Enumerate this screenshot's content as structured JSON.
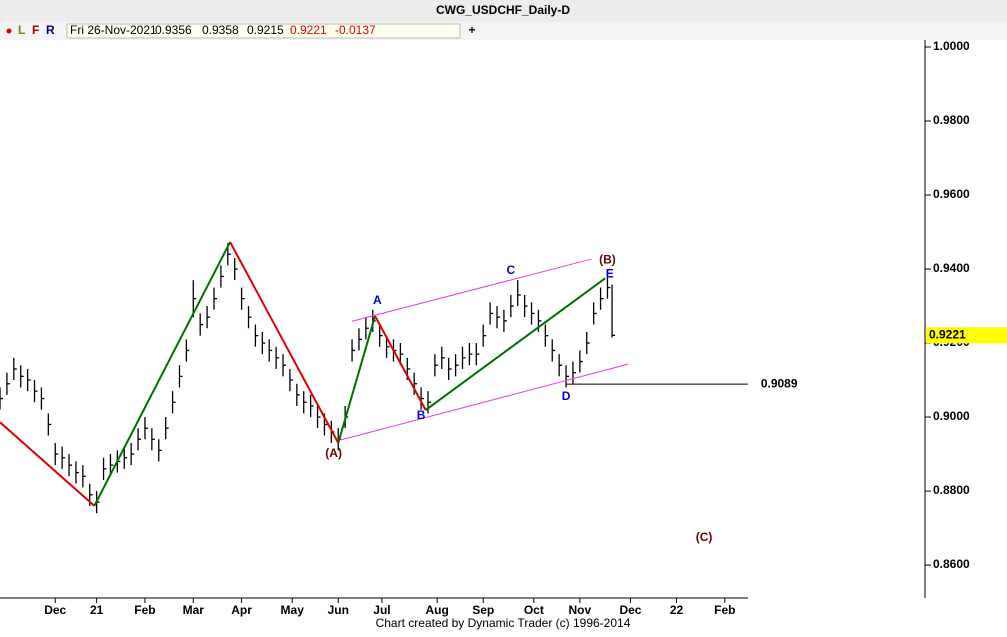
{
  "chart_data": {
    "type": "ohlc",
    "title": "CWG_USDCHF_Daily-D",
    "toolbar": [
      "L",
      "F",
      "R"
    ],
    "info": {
      "date": "Fri 26-Nov-2021",
      "open": 0.9356,
      "high": 0.9358,
      "low": 0.9215,
      "close": 0.9221,
      "change": -0.0137
    },
    "footer": "Chart created by Dynamic Trader  (c) 1996-2014",
    "xlim": [
      0,
      402
    ],
    "xticks": [
      {
        "value": 24,
        "label": "Dec"
      },
      {
        "value": 42,
        "label": "21"
      },
      {
        "value": 63,
        "label": "Feb"
      },
      {
        "value": 84,
        "label": "Mar"
      },
      {
        "value": 105,
        "label": "Apr"
      },
      {
        "value": 127,
        "label": "May"
      },
      {
        "value": 147,
        "label": "Jun"
      },
      {
        "value": 166,
        "label": "Jul"
      },
      {
        "value": 190,
        "label": "Aug"
      },
      {
        "value": 210,
        "label": "Sep"
      },
      {
        "value": 232,
        "label": "Oct"
      },
      {
        "value": 252,
        "label": "Nov"
      },
      {
        "value": 274,
        "label": "Dec"
      },
      {
        "value": 294,
        "label": "22"
      },
      {
        "value": 315,
        "label": "Feb"
      }
    ],
    "ylim": [
      0.8511,
      1.0019
    ],
    "yticks": [
      {
        "value": 1.0,
        "label": "1.0000"
      },
      {
        "value": 0.98,
        "label": "0.9800"
      },
      {
        "value": 0.96,
        "label": "0.9600"
      },
      {
        "value": 0.94,
        "label": "0.9400"
      },
      {
        "value": 0.92,
        "label": "0.9200"
      },
      {
        "value": 0.9,
        "label": "0.9000"
      },
      {
        "value": 0.88,
        "label": "0.8800"
      },
      {
        "value": 0.86,
        "label": "0.8600"
      }
    ],
    "bar_color": "#000000",
    "x": [
      0,
      3,
      6,
      9,
      12,
      15,
      18,
      21,
      24,
      27,
      30,
      33,
      36,
      39,
      42,
      45,
      48,
      51,
      54,
      57,
      60,
      63,
      66,
      69,
      72,
      75,
      78,
      81,
      84,
      87,
      90,
      93,
      96,
      99,
      102,
      105,
      108,
      111,
      114,
      117,
      120,
      123,
      126,
      129,
      132,
      135,
      138,
      141,
      144,
      147,
      150,
      153,
      156,
      159,
      162,
      165,
      168,
      171,
      174,
      177,
      180,
      183,
      186,
      189,
      192,
      195,
      198,
      201,
      204,
      207,
      210,
      213,
      216,
      219,
      222,
      225,
      228,
      231,
      234,
      237,
      240,
      243,
      246,
      249,
      252,
      255,
      258,
      261,
      264,
      266
    ],
    "high": [
      0.908,
      0.912,
      0.916,
      0.914,
      0.913,
      0.91,
      0.908,
      0.901,
      0.893,
      0.892,
      0.89,
      0.888,
      0.887,
      0.882,
      0.88,
      0.889,
      0.89,
      0.891,
      0.892,
      0.893,
      0.897,
      0.9,
      0.897,
      0.894,
      0.9,
      0.907,
      0.914,
      0.921,
      0.937,
      0.928,
      0.93,
      0.935,
      0.941,
      0.947,
      0.943,
      0.935,
      0.93,
      0.925,
      0.923,
      0.921,
      0.919,
      0.917,
      0.913,
      0.909,
      0.907,
      0.906,
      0.903,
      0.901,
      0.899,
      0.897,
      0.903,
      0.921,
      0.924,
      0.927,
      0.929,
      0.925,
      0.922,
      0.921,
      0.92,
      0.916,
      0.912,
      0.908,
      0.907,
      0.917,
      0.919,
      0.916,
      0.917,
      0.919,
      0.92,
      0.92,
      0.925,
      0.931,
      0.93,
      0.929,
      0.933,
      0.937,
      0.933,
      0.931,
      0.929,
      0.925,
      0.921,
      0.917,
      0.914,
      0.915,
      0.918,
      0.923,
      0.931,
      0.935,
      0.938,
      0.9358
    ],
    "low": [
      0.902,
      0.906,
      0.91,
      0.908,
      0.907,
      0.904,
      0.902,
      0.895,
      0.887,
      0.886,
      0.884,
      0.882,
      0.881,
      0.876,
      0.874,
      0.883,
      0.884,
      0.885,
      0.886,
      0.887,
      0.891,
      0.894,
      0.891,
      0.888,
      0.894,
      0.901,
      0.908,
      0.915,
      0.927,
      0.922,
      0.924,
      0.929,
      0.935,
      0.941,
      0.937,
      0.929,
      0.924,
      0.919,
      0.917,
      0.915,
      0.913,
      0.911,
      0.907,
      0.903,
      0.901,
      0.9,
      0.897,
      0.895,
      0.893,
      0.891,
      0.897,
      0.915,
      0.918,
      0.921,
      0.923,
      0.919,
      0.916,
      0.915,
      0.914,
      0.91,
      0.906,
      0.902,
      0.901,
      0.911,
      0.913,
      0.91,
      0.911,
      0.913,
      0.914,
      0.914,
      0.919,
      0.925,
      0.924,
      0.923,
      0.927,
      0.93,
      0.927,
      0.925,
      0.923,
      0.919,
      0.915,
      0.911,
      0.908,
      0.909,
      0.912,
      0.917,
      0.925,
      0.929,
      0.932,
      0.9215
    ],
    "close": [
      0.905,
      0.909,
      0.913,
      0.911,
      0.91,
      0.907,
      0.905,
      0.898,
      0.89,
      0.889,
      0.887,
      0.885,
      0.884,
      0.879,
      0.877,
      0.886,
      0.887,
      0.888,
      0.889,
      0.89,
      0.894,
      0.897,
      0.894,
      0.891,
      0.897,
      0.904,
      0.911,
      0.918,
      0.932,
      0.925,
      0.927,
      0.932,
      0.938,
      0.944,
      0.94,
      0.932,
      0.927,
      0.922,
      0.92,
      0.918,
      0.916,
      0.914,
      0.91,
      0.906,
      0.904,
      0.903,
      0.9,
      0.898,
      0.896,
      0.894,
      0.9,
      0.918,
      0.921,
      0.924,
      0.926,
      0.922,
      0.919,
      0.918,
      0.917,
      0.913,
      0.909,
      0.905,
      0.904,
      0.914,
      0.916,
      0.913,
      0.914,
      0.916,
      0.917,
      0.917,
      0.922,
      0.928,
      0.927,
      0.926,
      0.93,
      0.933,
      0.93,
      0.928,
      0.926,
      0.922,
      0.918,
      0.914,
      0.911,
      0.912,
      0.915,
      0.92,
      0.928,
      0.932,
      0.935,
      0.9221
    ],
    "wave_segments": [
      {
        "color": "#e00000",
        "x": [
          0,
          41
        ],
        "y": [
          0.8986,
          0.876
        ]
      },
      {
        "color": "#007000",
        "x": [
          41,
          100
        ],
        "y": [
          0.876,
          0.9473
        ]
      },
      {
        "color": "#e00000",
        "x": [
          100,
          147
        ],
        "y": [
          0.9473,
          0.893
        ]
      },
      {
        "color": "#007000",
        "x": [
          147,
          163
        ],
        "y": [
          0.893,
          0.9273
        ]
      },
      {
        "color": "#e00000",
        "x": [
          163,
          185
        ],
        "y": [
          0.9273,
          0.9019
        ]
      },
      {
        "color": "#007000",
        "x": [
          185,
          263
        ],
        "y": [
          0.9019,
          0.9375
        ]
      }
    ],
    "channel_lines": [
      {
        "color": "#e040e0",
        "x": [
          153,
          257
        ],
        "y": [
          0.9259,
          0.9427
        ]
      },
      {
        "color": "#e040e0",
        "x": [
          148,
          273
        ],
        "y": [
          0.8938,
          0.9143
        ]
      }
    ],
    "level": 0.9089,
    "level_x": [
      246,
      325
    ],
    "last_price": 0.9221,
    "annotations": [
      {
        "text": "(A)",
        "x": 145,
        "y": 0.89,
        "color": "#6b0000"
      },
      {
        "text": "A",
        "x": 164,
        "y": 0.9314,
        "color": "#0000e0"
      },
      {
        "text": "B",
        "x": 183,
        "y": 0.9003,
        "color": "#0000e0"
      },
      {
        "text": "C",
        "x": 222,
        "y": 0.9395,
        "color": "#0000e0"
      },
      {
        "text": "D",
        "x": 246,
        "y": 0.9054,
        "color": "#0000e0"
      },
      {
        "text": "E",
        "x": 265,
        "y": 0.9386,
        "color": "#0000e0"
      },
      {
        "text": "(B)",
        "x": 264,
        "y": 0.9424,
        "color": "#6b0000"
      },
      {
        "text": "(C)",
        "x": 306,
        "y": 0.8673,
        "color": "#6b0000"
      }
    ]
  }
}
